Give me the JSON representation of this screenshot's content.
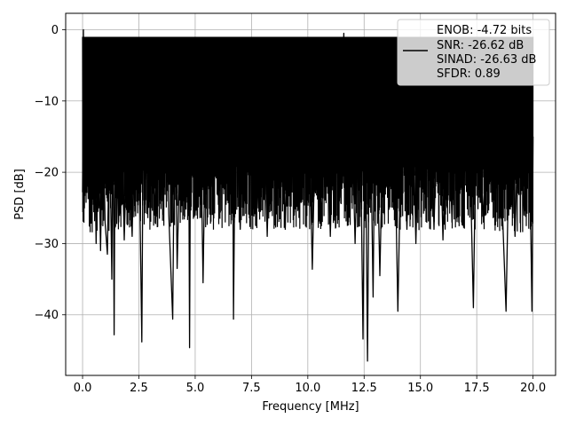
{
  "chart_data": {
    "type": "line",
    "xlabel": "Frequency [MHz]",
    "ylabel": "PSD [dB]",
    "xlim": [
      -0.75,
      21.0
    ],
    "ylim": [
      -48.5,
      2.3
    ],
    "x_ticks": [
      0.0,
      2.5,
      5.0,
      7.5,
      10.0,
      12.5,
      15.0,
      17.5,
      20.0
    ],
    "x_tick_labels": [
      "0.0",
      "2.5",
      "5.0",
      "7.5",
      "10.0",
      "12.5",
      "15.0",
      "17.5",
      "20.0"
    ],
    "y_ticks": [
      0,
      -10,
      -20,
      -30,
      -40
    ],
    "y_tick_labels": [
      "0",
      "−10",
      "−20",
      "−30",
      "−40"
    ],
    "grid": true,
    "legend_position": "top-right",
    "legend_lines": [
      "ENOB: -4.72 bits",
      "SNR: -26.62 dB",
      "SINAD: -26.63 dB",
      "SFDR: 0.89"
    ],
    "line_color": "#000000",
    "series": [
      {
        "points": [
          [
            0.0,
            -22.8
          ],
          [
            0.02,
            -12.0
          ],
          [
            0.04,
            0.0
          ],
          [
            0.06,
            -14.0
          ],
          [
            0.08,
            -25.0
          ],
          [
            0.1,
            -8.0
          ],
          [
            0.15,
            -4.0
          ],
          [
            0.2,
            -18.0
          ],
          [
            0.25,
            -10.0
          ],
          [
            0.3,
            -6.0
          ],
          [
            0.4,
            -27.0
          ],
          [
            0.45,
            -12.0
          ],
          [
            0.5,
            -8.0
          ],
          [
            0.6,
            -30.0
          ],
          [
            0.7,
            -13.0
          ],
          [
            0.8,
            -31.0
          ],
          [
            0.9,
            -9.0
          ],
          [
            1.0,
            -27.0
          ],
          [
            1.1,
            -31.5
          ],
          [
            1.2,
            -12.0
          ],
          [
            1.3,
            -35.0
          ],
          [
            1.35,
            -9.0
          ],
          [
            1.4,
            -42.8
          ],
          [
            1.45,
            -11.0
          ],
          [
            1.6,
            -27.0
          ],
          [
            1.7,
            -9.0
          ],
          [
            1.85,
            -29.5
          ],
          [
            2.0,
            -11.5
          ],
          [
            2.2,
            -29.0
          ],
          [
            2.35,
            -4.0
          ],
          [
            2.5,
            -14.0
          ],
          [
            2.63,
            -43.8
          ],
          [
            2.7,
            -7.0
          ],
          [
            2.8,
            -21.0
          ],
          [
            3.0,
            -4.5
          ],
          [
            3.2,
            -26.0
          ],
          [
            3.4,
            -5.5
          ],
          [
            3.5,
            -24.0
          ],
          [
            3.7,
            -5.0
          ],
          [
            3.83,
            -26.0
          ],
          [
            4.0,
            -40.6
          ],
          [
            4.1,
            -6.0
          ],
          [
            4.2,
            -33.5
          ],
          [
            4.4,
            -5.5
          ],
          [
            4.6,
            -16.0
          ],
          [
            4.7,
            -4.0
          ],
          [
            4.75,
            -44.6
          ],
          [
            4.8,
            -8.0
          ],
          [
            5.0,
            -26.0
          ],
          [
            5.2,
            -4.0
          ],
          [
            5.35,
            -35.5
          ],
          [
            5.5,
            -3.5
          ],
          [
            5.7,
            -22.0
          ],
          [
            5.9,
            -3.0
          ],
          [
            6.1,
            -20.0
          ],
          [
            6.3,
            -3.2
          ],
          [
            6.5,
            -18.5
          ],
          [
            6.65,
            -2.5
          ],
          [
            6.7,
            -40.6
          ],
          [
            6.8,
            -5.0
          ],
          [
            7.0,
            -28.0
          ],
          [
            7.2,
            -3.5
          ],
          [
            7.4,
            -20.0
          ],
          [
            7.5,
            -12.0
          ],
          [
            7.6,
            -3.0
          ],
          [
            7.8,
            -25.0
          ],
          [
            8.0,
            -3.5
          ],
          [
            8.2,
            -29.0
          ],
          [
            8.4,
            -2.8
          ],
          [
            8.6,
            -24.0
          ],
          [
            8.8,
            -3.2
          ],
          [
            9.0,
            -28.0
          ],
          [
            9.2,
            -4.0
          ],
          [
            9.4,
            -26.0
          ],
          [
            9.6,
            -3.0
          ],
          [
            9.8,
            -21.0
          ],
          [
            10.0,
            -2.5
          ],
          [
            10.2,
            -33.6
          ],
          [
            10.4,
            -3.5
          ],
          [
            10.6,
            -27.5
          ],
          [
            10.8,
            -2.5
          ],
          [
            11.0,
            -29.0
          ],
          [
            11.2,
            -4.0
          ],
          [
            11.4,
            -24.0
          ],
          [
            11.6,
            -0.5
          ],
          [
            11.7,
            -20.0
          ],
          [
            11.9,
            -4.5
          ],
          [
            12.1,
            -30.0
          ],
          [
            12.3,
            -3.5
          ],
          [
            12.45,
            -43.4
          ],
          [
            12.55,
            -8.0
          ],
          [
            12.65,
            -46.5
          ],
          [
            12.75,
            -5.0
          ],
          [
            12.9,
            -37.5
          ],
          [
            13.0,
            -4.0
          ],
          [
            13.2,
            -34.5
          ],
          [
            13.4,
            -3.5
          ],
          [
            13.6,
            -22.0
          ],
          [
            13.8,
            -4.5
          ],
          [
            14.0,
            -39.5
          ],
          [
            14.2,
            -5.0
          ],
          [
            14.4,
            -28.0
          ],
          [
            14.6,
            -3.0
          ],
          [
            14.8,
            -30.0
          ],
          [
            15.0,
            -4.0
          ],
          [
            15.2,
            -23.0
          ],
          [
            15.4,
            -2.5
          ],
          [
            15.6,
            -28.0
          ],
          [
            15.8,
            -3.8
          ],
          [
            16.0,
            -29.5
          ],
          [
            16.2,
            -4.5
          ],
          [
            16.4,
            -27.0
          ],
          [
            16.6,
            -4.0
          ],
          [
            16.9,
            -26.0
          ],
          [
            17.1,
            -3.5
          ],
          [
            17.35,
            -39.0
          ],
          [
            17.5,
            -5.0
          ],
          [
            17.8,
            -27.0
          ],
          [
            18.0,
            -4.0
          ],
          [
            18.2,
            -23.0
          ],
          [
            18.4,
            -4.5
          ],
          [
            18.8,
            -39.5
          ],
          [
            19.0,
            -5.0
          ],
          [
            19.2,
            -29.0
          ],
          [
            19.4,
            -5.5
          ],
          [
            19.6,
            -26.0
          ],
          [
            19.8,
            -6.0
          ],
          [
            19.95,
            -39.5
          ],
          [
            20.0,
            -15.0
          ]
        ]
      }
    ]
  }
}
